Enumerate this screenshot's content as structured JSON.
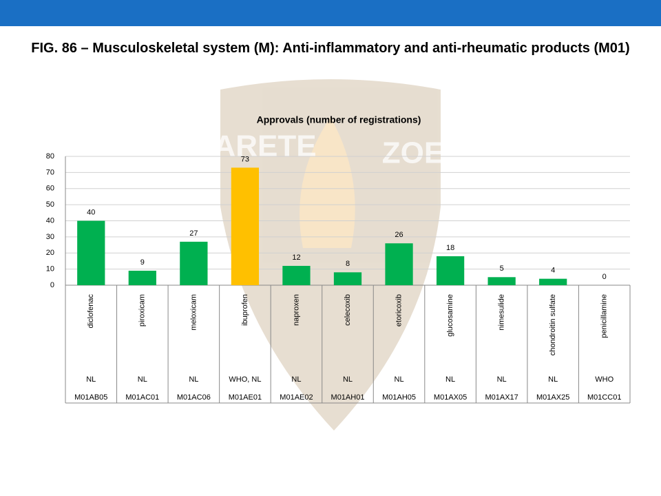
{
  "page": {
    "heading": "FIG. 86 – Musculoskeletal system (M): Anti-inflammatory and anti-rheumatic products (M01)"
  },
  "logo": {
    "words": [
      "ARETE",
      "ZOE"
    ]
  },
  "chart_data": {
    "type": "bar",
    "title": "Approvals (number of registrations)",
    "categories": [
      "diclofenac",
      "piroxicam",
      "meloxicam",
      "ibuprofen",
      "naproxen",
      "celecoxib",
      "etoricoxib",
      "glucosamine",
      "nimesulide",
      "chondroitin sulfate",
      "penicillamine"
    ],
    "sources": [
      "NL",
      "NL",
      "NL",
      "WHO, NL",
      "NL",
      "NL",
      "NL",
      "NL",
      "NL",
      "NL",
      "WHO"
    ],
    "codes": [
      "M01AB05",
      "M01AC01",
      "M01AC06",
      "M01AE01",
      "M01AE02",
      "M01AH01",
      "M01AH05",
      "M01AX05",
      "M01AX17",
      "M01AX25",
      "M01CC01"
    ],
    "values": [
      40,
      9,
      27,
      73,
      12,
      8,
      26,
      18,
      5,
      4,
      0
    ],
    "colors": [
      "#00b050",
      "#00b050",
      "#00b050",
      "#ffc000",
      "#00b050",
      "#00b050",
      "#00b050",
      "#00b050",
      "#00b050",
      "#00b050",
      "#00b050"
    ],
    "ylim": [
      0,
      80
    ],
    "yticks": [
      0,
      10,
      20,
      30,
      40,
      50,
      60,
      70,
      80
    ],
    "grid": true
  }
}
